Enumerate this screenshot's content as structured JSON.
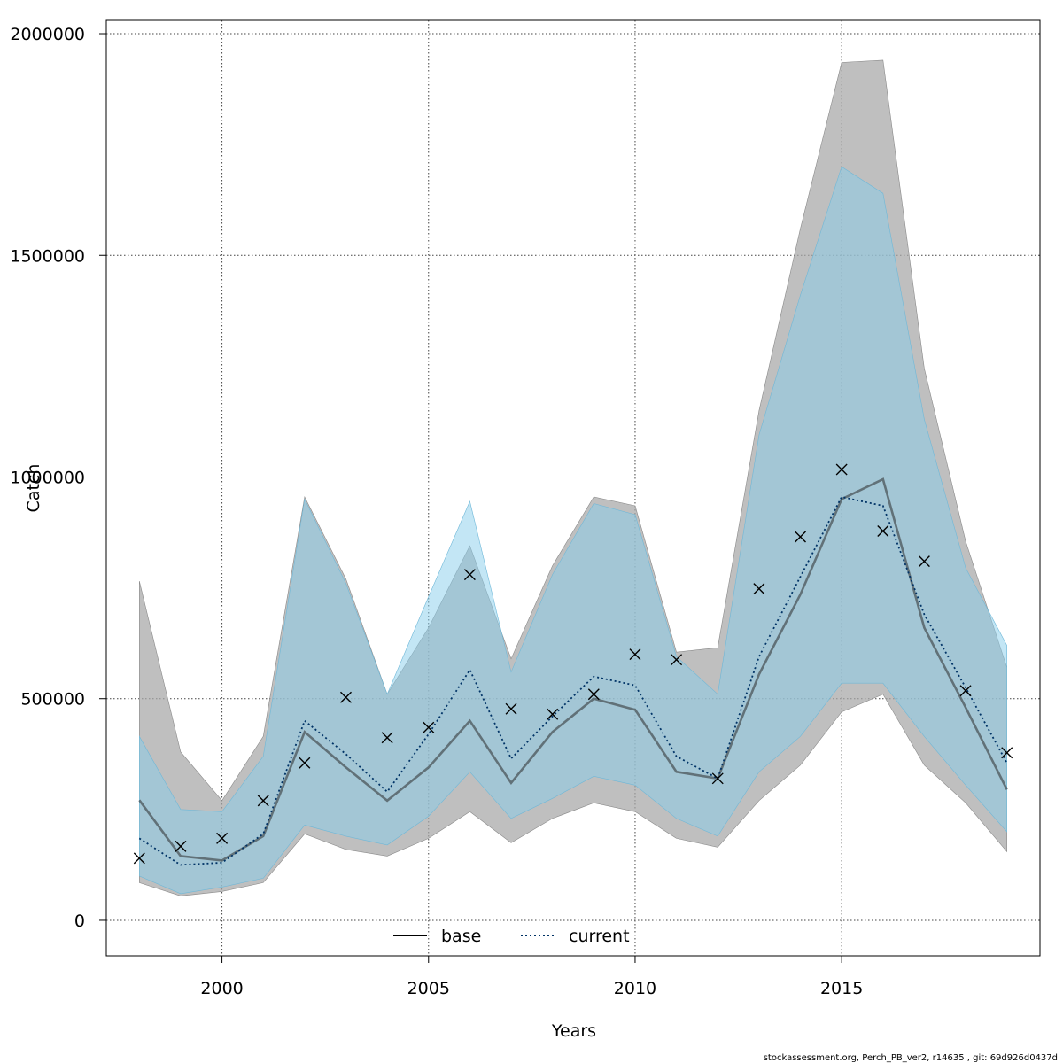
{
  "chart_data": {
    "type": "line",
    "xlabel": "Years",
    "ylabel": "Catch",
    "credit": "stockassessment.org, Perch_PB_ver2, r14635 , git: 69d926d0437d",
    "xlim": [
      1997.2,
      2019.8
    ],
    "ylim": [
      -80000,
      2030000
    ],
    "x_ticks": [
      2000,
      2005,
      2010,
      2015
    ],
    "y_ticks": [
      0,
      500000,
      1000000,
      1500000,
      2000000
    ],
    "grid": true,
    "legend": {
      "placement": "bottom",
      "entries": [
        "base",
        "current"
      ]
    },
    "years": [
      1998,
      1999,
      2000,
      2001,
      2002,
      2003,
      2004,
      2005,
      2006,
      2007,
      2008,
      2009,
      2010,
      2011,
      2012,
      2013,
      2014,
      2015,
      2016,
      2017,
      2018,
      2019
    ],
    "series": [
      {
        "name": "base",
        "values": [
          271000,
          145000,
          135000,
          190000,
          425000,
          345000,
          270000,
          345000,
          450000,
          310000,
          425000,
          500000,
          475000,
          335000,
          320000,
          555000,
          735000,
          950000,
          995000,
          660000,
          480000,
          295000
        ],
        "lower": [
          85000,
          55000,
          65000,
          85000,
          195000,
          160000,
          145000,
          185000,
          245000,
          175000,
          230000,
          265000,
          245000,
          185000,
          165000,
          270000,
          350000,
          470000,
          510000,
          350000,
          265000,
          155000
        ],
        "upper": [
          765000,
          380000,
          270000,
          415000,
          955000,
          770000,
          510000,
          660000,
          845000,
          590000,
          800000,
          955000,
          935000,
          605000,
          615000,
          1150000,
          1560000,
          1935000,
          1940000,
          1245000,
          855000,
          570000
        ]
      },
      {
        "name": "current",
        "values": [
          185000,
          125000,
          130000,
          195000,
          450000,
          375000,
          290000,
          420000,
          565000,
          365000,
          460000,
          550000,
          530000,
          370000,
          320000,
          595000,
          775000,
          955000,
          935000,
          690000,
          525000,
          355000
        ],
        "lower": [
          100000,
          60000,
          75000,
          95000,
          215000,
          190000,
          170000,
          235000,
          335000,
          230000,
          275000,
          325000,
          305000,
          230000,
          190000,
          335000,
          415000,
          535000,
          535000,
          415000,
          305000,
          200000
        ],
        "upper": [
          415000,
          250000,
          245000,
          370000,
          950000,
          760000,
          510000,
          730000,
          945000,
          560000,
          780000,
          940000,
          915000,
          595000,
          510000,
          1095000,
          1410000,
          1700000,
          1640000,
          1130000,
          795000,
          620000
        ]
      }
    ],
    "observed": [
      140000,
      167000,
      185000,
      270000,
      355000,
      503000,
      412000,
      435000,
      780000,
      477000,
      465000,
      510000,
      600000,
      588000,
      320000,
      748000,
      865000,
      1017000,
      878000,
      810000,
      518000,
      378000
    ]
  },
  "colors": {
    "base_band": "#a6a6a6",
    "current_band": "#87ceeb",
    "base_line": "#000000",
    "current_line": "#003366",
    "marker": "#000000"
  }
}
